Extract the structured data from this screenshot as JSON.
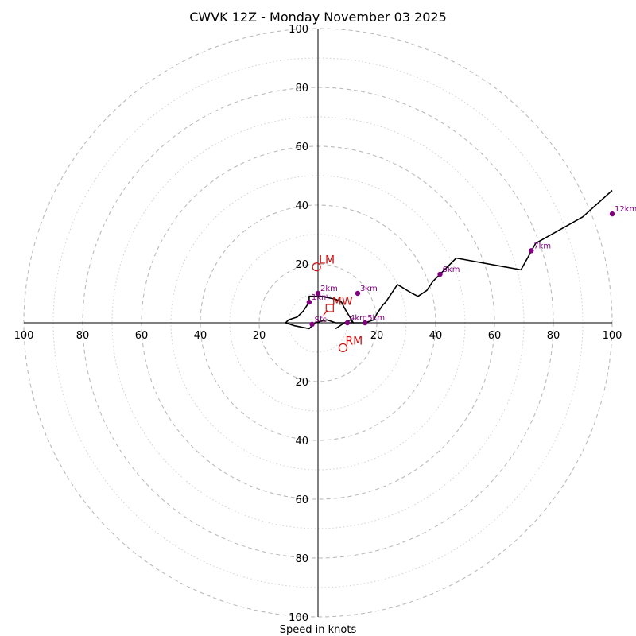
{
  "chart_data": {
    "type": "hodograph",
    "title": "CWVK 12Z - Monday November 03 2025",
    "xlabel": "Speed in knots",
    "max_speed": 100,
    "ring_major": [
      20,
      40,
      60,
      80,
      100
    ],
    "ring_minor": [
      10,
      30,
      50,
      70,
      90
    ],
    "tick_labels": {
      "left": [
        "100",
        "80",
        "60",
        "40",
        "20"
      ],
      "right": [
        "20",
        "40",
        "60",
        "80",
        "100"
      ],
      "up": [
        "20",
        "40",
        "60",
        "80",
        "100"
      ],
      "down": [
        "20",
        "40",
        "60",
        "80",
        "100"
      ]
    },
    "tick_values": [
      20,
      40,
      60,
      80,
      100
    ],
    "trace": [
      [
        6,
        -2
      ],
      [
        9,
        0
      ],
      [
        11,
        1
      ],
      [
        12,
        0
      ],
      [
        9,
        5
      ],
      [
        8,
        7
      ],
      [
        6,
        8
      ],
      [
        1,
        9
      ],
      [
        -3,
        9
      ],
      [
        -3,
        7
      ],
      [
        -5,
        4
      ],
      [
        -7,
        2
      ],
      [
        -10,
        1
      ],
      [
        -11,
        0
      ],
      [
        -8,
        -1
      ],
      [
        -3,
        -2
      ],
      [
        -1,
        0
      ],
      [
        3,
        1
      ],
      [
        6,
        0
      ],
      [
        10,
        0
      ],
      [
        16,
        0
      ],
      [
        19,
        1
      ],
      [
        20,
        3
      ],
      [
        22,
        6
      ],
      [
        23,
        7
      ],
      [
        27,
        13
      ],
      [
        32,
        10
      ],
      [
        34,
        9
      ],
      [
        37,
        11
      ],
      [
        39,
        14
      ],
      [
        42,
        17
      ],
      [
        47,
        22
      ],
      [
        69,
        18
      ],
      [
        74,
        27
      ],
      [
        90,
        36
      ],
      [
        100,
        45
      ]
    ],
    "height_markers": [
      {
        "label": "Sfc",
        "u": -2,
        "v": -0.5
      },
      {
        "label": "1km",
        "u": -3,
        "v": 7
      },
      {
        "label": "2km",
        "u": 0,
        "v": 10
      },
      {
        "label": "3km",
        "u": 13.5,
        "v": 10
      },
      {
        "label": "4km",
        "u": 10,
        "v": 0
      },
      {
        "label": "5km",
        "u": 16,
        "v": 0
      },
      {
        "label": "6km",
        "u": 41.5,
        "v": 16.5
      },
      {
        "label": "7km",
        "u": 72.5,
        "v": 24.5
      },
      {
        "label": "12km",
        "u": 100,
        "v": 37
      }
    ],
    "motion_markers": [
      {
        "label": "LM",
        "u": -0.5,
        "v": 19,
        "shape": "circle"
      },
      {
        "label": "MW",
        "u": 4,
        "v": 5,
        "shape": "square"
      },
      {
        "label": "RM",
        "u": 8.5,
        "v": -8.5,
        "shape": "circle"
      }
    ],
    "colors": {
      "rings": "#bbbbbb",
      "axes": "#000000",
      "trace": "#000000",
      "height_markers": "#800080",
      "motion_markers": "#cc1111"
    }
  }
}
